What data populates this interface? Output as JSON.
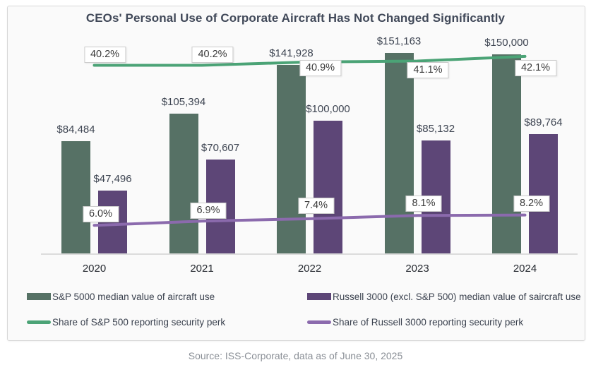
{
  "title": "CEOs' Personal Use of Corporate Aircraft Has Not Changed Significantly",
  "source": "Source: ISS-Corporate, data as of June 30, 2025",
  "colors": {
    "sp500_bar": "#567165",
    "russell_bar": "#5d4677",
    "sp500_line": "#4ba376",
    "russell_line": "#8b6aad",
    "axis": "#dcdcdc",
    "card_bg": "#fafafa",
    "card_border": "#d8d8d8"
  },
  "chart_data": {
    "type": "bar",
    "subtype": "grouped bars with two overlay lines (combo chart, dual axis)",
    "categories": [
      "2020",
      "2021",
      "2022",
      "2023",
      "2024"
    ],
    "series": [
      {
        "name": "S&P 5000 median value of aircraft use",
        "type": "bar",
        "values": [
          84484,
          105394,
          141928,
          151163,
          150000
        ],
        "labels": [
          "$84,484",
          "$105,394",
          "$141,928",
          "$151,163",
          "$150,000"
        ]
      },
      {
        "name": "Russell 3000 (excl. S&P 500) median value of saircraft use",
        "type": "bar",
        "values": [
          47496,
          70607,
          100000,
          85132,
          89764
        ],
        "labels": [
          "$47,496",
          "$70,607",
          "$100,000",
          "$85,132",
          "$89,764"
        ]
      },
      {
        "name": "Share of S&P 500 reporting security perk",
        "type": "line",
        "values": [
          40.2,
          40.2,
          40.9,
          41.1,
          42.1
        ],
        "labels": [
          "40.2%",
          "40.2%",
          "40.9%",
          "41.1%",
          "42.1%"
        ]
      },
      {
        "name": "Share of Russell 3000 reporting security perk",
        "type": "line",
        "values": [
          6.0,
          6.9,
          7.4,
          8.1,
          8.2
        ],
        "labels": [
          "6.0%",
          "6.9%",
          "7.4%",
          "8.1%",
          "8.2%"
        ]
      }
    ],
    "title": "CEOs' Personal Use of Corporate Aircraft Has Not Changed Significantly",
    "xlabel": "",
    "ylabel": "",
    "bar_axis_lim": [
      0,
      160000
    ],
    "line_axis_lim": [
      0,
      45
    ],
    "grid": false,
    "legend_position": "bottom, two columns"
  }
}
